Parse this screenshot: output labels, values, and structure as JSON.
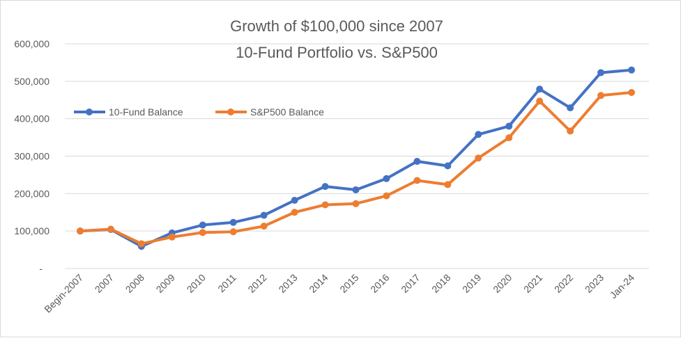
{
  "chart_data": {
    "type": "line",
    "title_line1": "Growth of $100,000 since 2007",
    "title_line2": "10-Fund Portfolio vs. S&P500",
    "xlabel": "",
    "ylabel": "",
    "categories": [
      "Begin-2007",
      "2007",
      "2008",
      "2009",
      "2010",
      "2011",
      "2012",
      "2013",
      "2014",
      "2015",
      "2016",
      "2017",
      "2018",
      "2019",
      "2020",
      "2021",
      "2022",
      "2023",
      "Jan-24"
    ],
    "ylim": [
      0,
      600000
    ],
    "yticks": [
      0,
      100000,
      200000,
      300000,
      400000,
      500000,
      600000
    ],
    "ytick_labels": [
      "-",
      "100,000",
      "200,000",
      "300,000",
      "400,000",
      "500,000",
      "600,000"
    ],
    "grid": true,
    "legend_position": "upper-left",
    "series": [
      {
        "name": "10-Fund Balance",
        "color": "#4472C4",
        "values": [
          100000,
          104000,
          59000,
          95000,
          116000,
          123000,
          142000,
          182000,
          219000,
          210000,
          240000,
          286000,
          274000,
          358000,
          380000,
          479000,
          429000,
          523000,
          530000
        ]
      },
      {
        "name": "S&P500 Balance",
        "color": "#ED7D31",
        "values": [
          100000,
          105000,
          66000,
          84000,
          96000,
          98000,
          113000,
          150000,
          170000,
          173000,
          194000,
          235000,
          224000,
          295000,
          349000,
          447000,
          367000,
          462000,
          470000
        ]
      }
    ]
  }
}
